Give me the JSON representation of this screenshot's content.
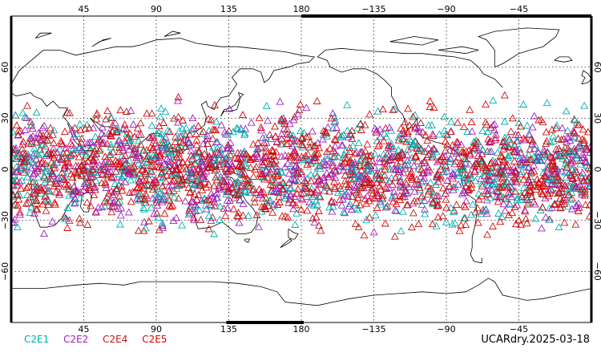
{
  "map": {
    "lon_ticks_top": [
      "45",
      "90",
      "135",
      "180",
      "−135",
      "−90",
      "−45"
    ],
    "lon_ticks_bottom": [
      "45",
      "90",
      "135",
      "180",
      "−135",
      "−90",
      "−45"
    ],
    "lat_ticks": [
      "60",
      "30",
      "0",
      "−30",
      "−60"
    ],
    "lat_ticks_right": [
      "60",
      "30",
      "0",
      "−30",
      "−60"
    ],
    "lon_range": [
      0,
      360
    ],
    "lat_range": [
      -90,
      90
    ],
    "grid": "dotted",
    "marker": "open-triangle"
  },
  "legend": [
    {
      "label": "C2E1",
      "color": "#00b0b0"
    },
    {
      "label": "C2E2",
      "color": "#a020c0"
    },
    {
      "label": "C2E4",
      "color": "#c01818"
    },
    {
      "label": "C2E5",
      "color": "#e00000"
    }
  ],
  "run_label": "UCARdry.2025-03-18"
}
